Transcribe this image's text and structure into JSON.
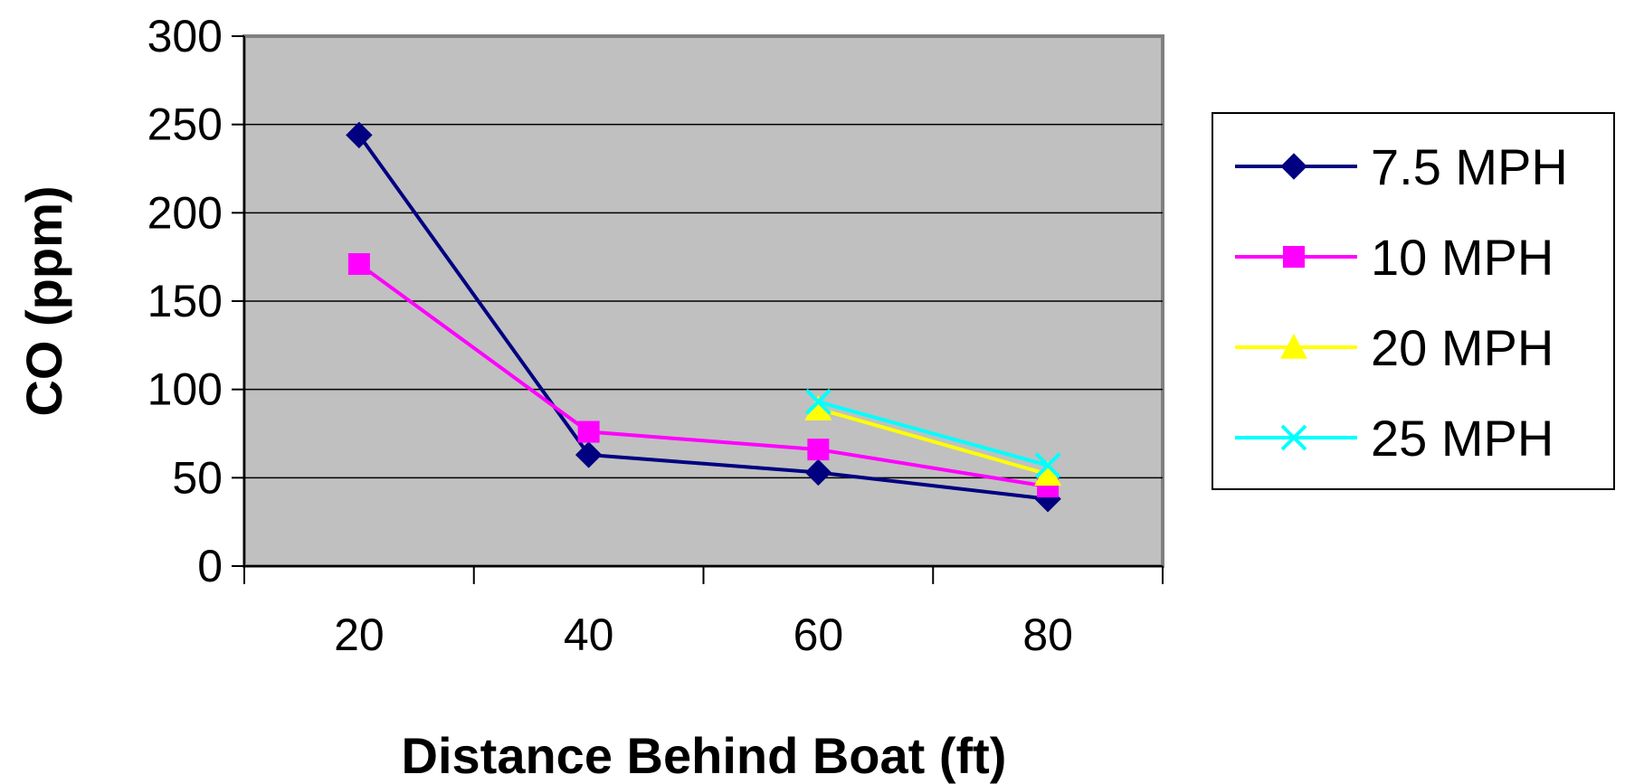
{
  "chart_data": {
    "type": "line",
    "title": "",
    "xlabel": "Distance Behind Boat (ft)",
    "ylabel": "CO (ppm)",
    "categories": [
      "20",
      "40",
      "60",
      "80"
    ],
    "ylim": [
      0,
      300
    ],
    "yticks": [
      "0",
      "50",
      "100",
      "150",
      "200",
      "250",
      "300"
    ],
    "grid": true,
    "legend_position": "right",
    "plot_background": "#c0c0c0",
    "series": [
      {
        "name": "7.5 MPH",
        "color": "#000080",
        "marker": "diamond",
        "values": [
          244,
          63,
          53,
          38
        ]
      },
      {
        "name": "10 MPH",
        "color": "#ff00ff",
        "marker": "square",
        "values": [
          171,
          76,
          66,
          45
        ]
      },
      {
        "name": "20 MPH",
        "color": "#ffff00",
        "marker": "triangle",
        "values": [
          null,
          null,
          89,
          52
        ]
      },
      {
        "name": "25 MPH",
        "color": "#00ffff",
        "marker": "x",
        "values": [
          null,
          null,
          93,
          57
        ]
      }
    ]
  }
}
